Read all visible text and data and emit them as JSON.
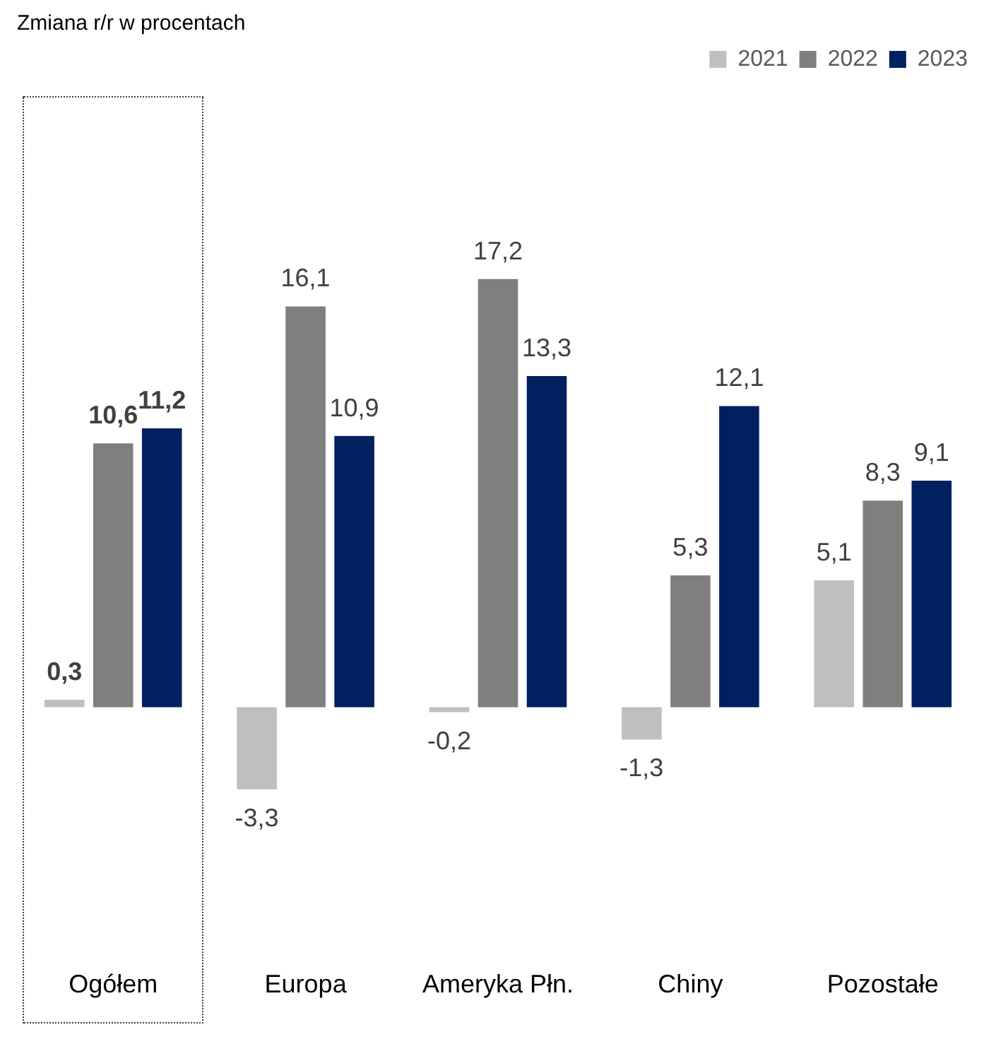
{
  "chart_data": {
    "type": "bar",
    "title": "Zmiana r/r w procentach",
    "categories": [
      "Ogółem",
      "Europa",
      "Ameryka Płn.",
      "Chiny",
      "Pozostałe"
    ],
    "series": [
      {
        "name": "2021",
        "color": "#bfbfbf",
        "values": [
          0.3,
          -3.3,
          -0.2,
          -1.3,
          5.1
        ],
        "value_labels": [
          "0,3",
          "-3,3",
          "-0,2",
          "-1,3",
          "5,1"
        ]
      },
      {
        "name": "2022",
        "color": "#7f7f7f",
        "values": [
          10.6,
          16.1,
          17.2,
          5.3,
          8.3
        ],
        "value_labels": [
          "10,6",
          "16,1",
          "17,2",
          "5,3",
          "8,3"
        ]
      },
      {
        "name": "2023",
        "color": "#002060",
        "values": [
          11.2,
          10.9,
          13.3,
          12.1,
          9.1
        ],
        "value_labels": [
          "11,2",
          "10,9",
          "13,3",
          "12,1",
          "9,1"
        ]
      }
    ],
    "tick_labels": "x",
    "grid": false,
    "legend": "top right"
  }
}
